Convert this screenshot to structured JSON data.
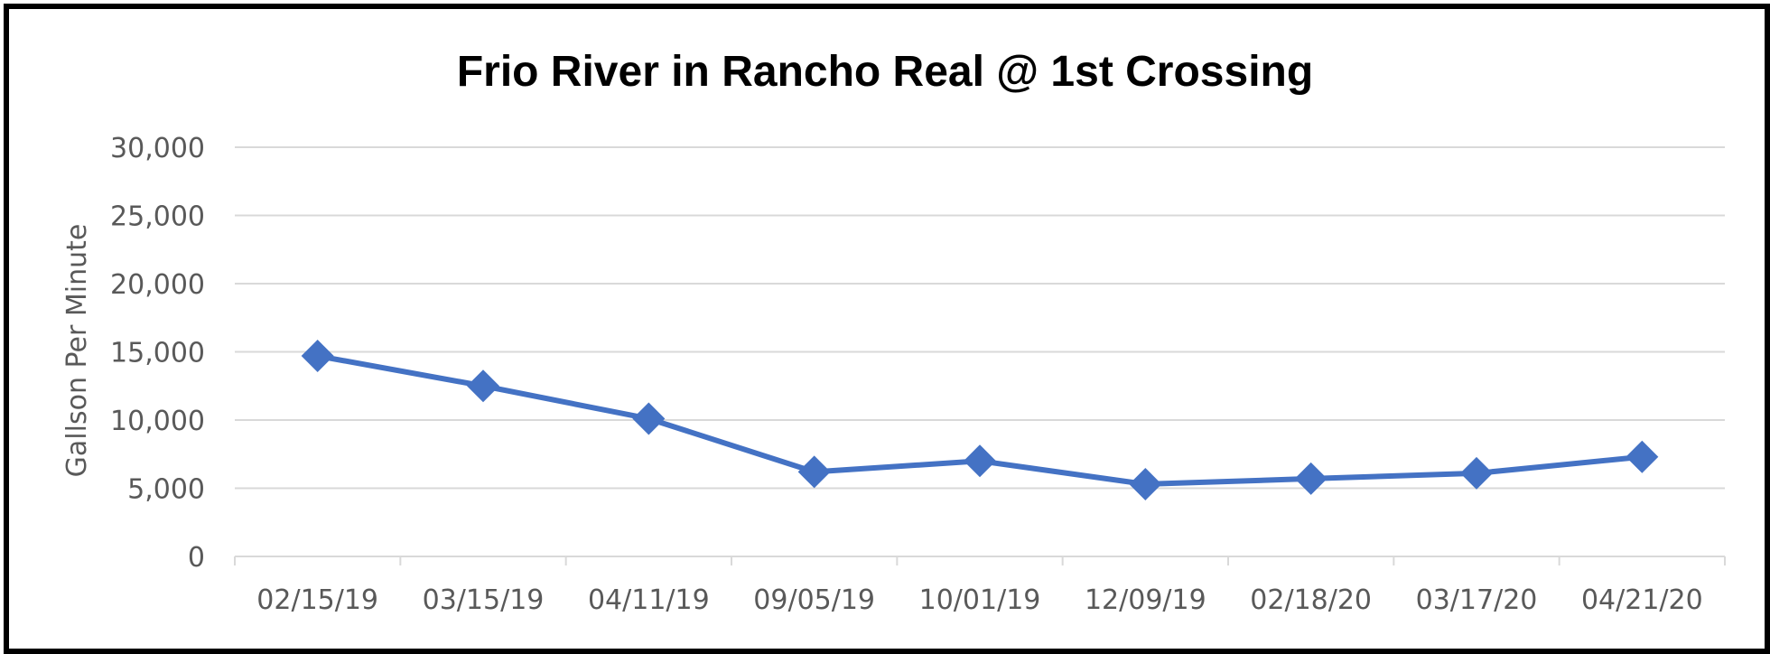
{
  "chart_data": {
    "type": "line",
    "title": "Frio River in Rancho Real @ 1st Crossing",
    "xlabel": "",
    "ylabel": "Gallson Per Minute",
    "categories": [
      "02/15/19",
      "03/15/19",
      "04/11/19",
      "09/05/19",
      "10/01/19",
      "12/09/19",
      "02/18/20",
      "03/17/20",
      "04/21/20"
    ],
    "series": [
      {
        "values": [
          14700,
          12500,
          10100,
          6200,
          7000,
          5300,
          5700,
          6100,
          7300
        ],
        "color": "#4472C4",
        "marker": "diamond"
      }
    ],
    "ylim": [
      0,
      30000
    ],
    "y_ticks": [
      0,
      5000,
      10000,
      15000,
      20000,
      25000,
      30000
    ],
    "y_tick_labels": [
      "0",
      "5,000",
      "10,000",
      "15,000",
      "20,000",
      "25,000",
      "30,000"
    ],
    "grid": true,
    "legend": "none"
  }
}
